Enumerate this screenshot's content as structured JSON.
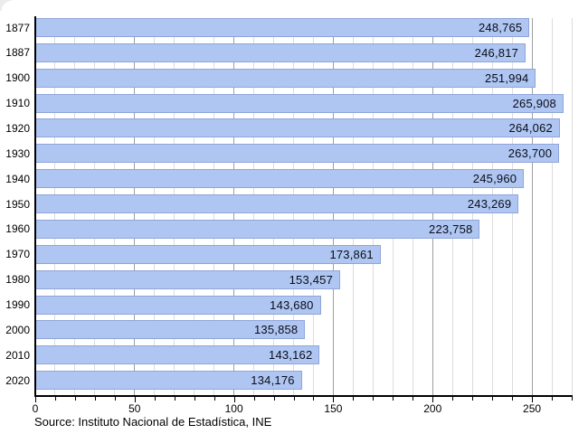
{
  "chart_data": {
    "type": "bar",
    "orientation": "horizontal",
    "title": "",
    "xlabel": "",
    "ylabel": "",
    "categories": [
      "1877",
      "1887",
      "1900",
      "1910",
      "1920",
      "1930",
      "1940",
      "1950",
      "1960",
      "1970",
      "1980",
      "1990",
      "2000",
      "2010",
      "2020"
    ],
    "values": [
      248765,
      246817,
      251994,
      265908,
      264062,
      263700,
      245960,
      243269,
      223758,
      173861,
      153457,
      143680,
      135858,
      143162,
      134176
    ],
    "value_labels": [
      "248,765",
      "246,817",
      "251,994",
      "265,908",
      "264,062",
      "263,700",
      "245,960",
      "243,269",
      "223,758",
      "173,861",
      "153,457",
      "143,680",
      "135,858",
      "143,162",
      "134,176"
    ],
    "x_axis_unit": "thousands",
    "xlim": [
      0,
      270
    ],
    "x_major_ticks": [
      0,
      50,
      100,
      150,
      200,
      250
    ],
    "x_major_tick_labels": [
      "0",
      "50",
      "100",
      "150",
      "200",
      "250"
    ],
    "x_minor_tick_step": 10,
    "grid": "on",
    "legend": "none"
  },
  "source_note": "Source: Instituto Nacional de Estadística, INE",
  "colors": {
    "bar_fill": "#aec6f1",
    "bar_border": "#8fa5da",
    "value_text": "#0b0b1a",
    "grid_minor": "#dcdcdc",
    "grid_major": "#9e9e9e",
    "axis": "#000000",
    "background": "#ffffff",
    "corner_artifact": "#ececec"
  }
}
